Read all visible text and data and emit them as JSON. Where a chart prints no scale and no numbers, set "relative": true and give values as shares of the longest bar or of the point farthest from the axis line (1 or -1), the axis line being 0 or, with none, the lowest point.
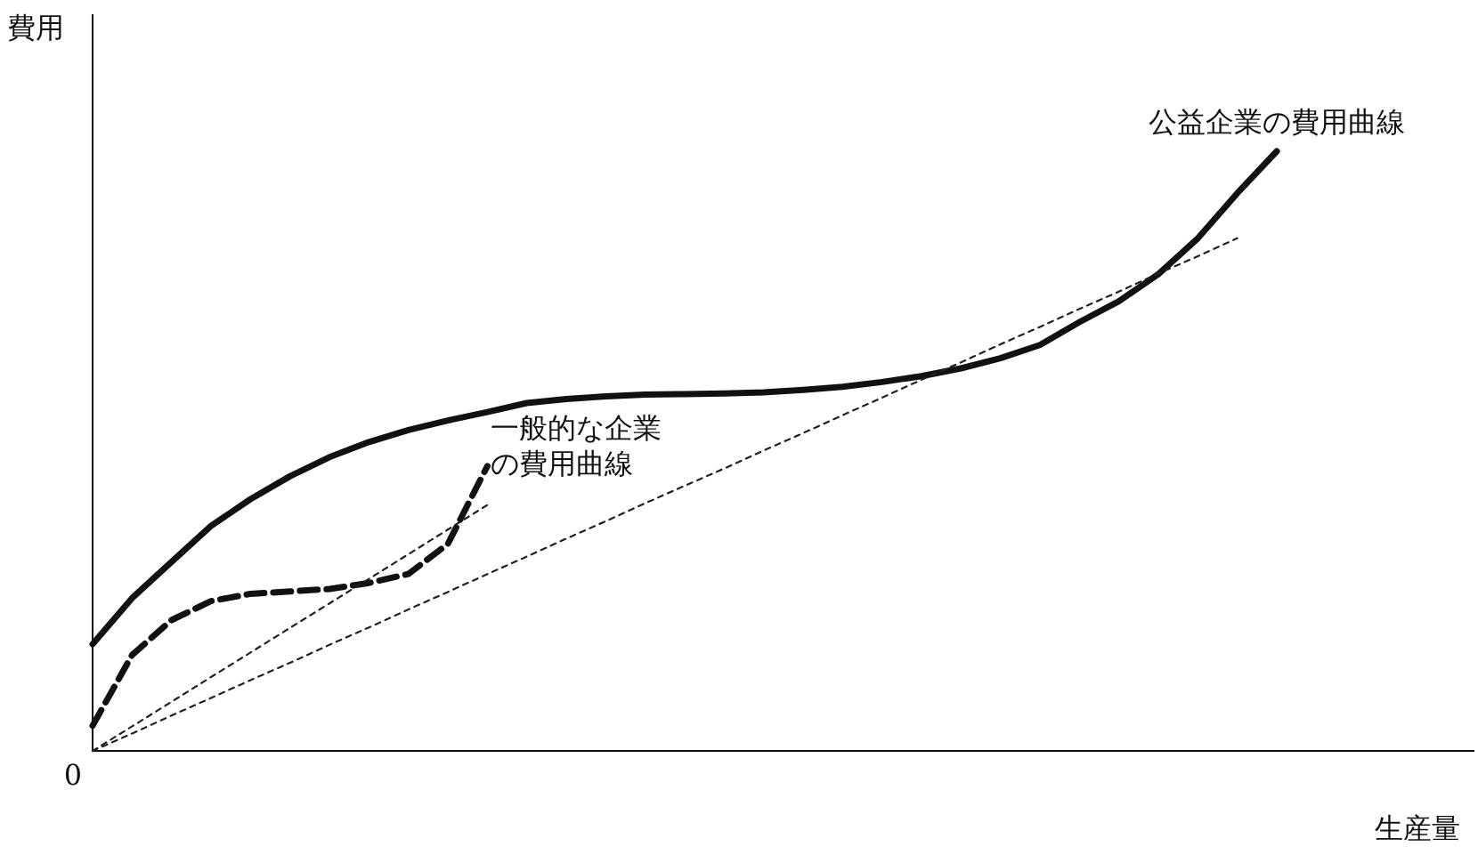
{
  "chart_data": {
    "type": "line",
    "relative": true,
    "xlabel": "生産量",
    "ylabel": "費用",
    "annotations": [
      "0"
    ],
    "categories": [
      null,
      null,
      null,
      null,
      null,
      null,
      null,
      null,
      null,
      null,
      null,
      null,
      null,
      null,
      null,
      null,
      null,
      null,
      null,
      null,
      null,
      null,
      null,
      null,
      null,
      null,
      null,
      null,
      null,
      null,
      null
    ],
    "series": [
      {
        "name": "公益企業の費用曲線",
        "color": "#111111",
        "line_style": "solid",
        "values": [
          0.178,
          0.255,
          0.315,
          0.375,
          0.42,
          0.458,
          0.49,
          0.515,
          0.535,
          0.551,
          0.565,
          0.58,
          0.587,
          0.591,
          0.594,
          0.595,
          0.596,
          0.598,
          0.602,
          0.607,
          0.615,
          0.625,
          0.638,
          0.655,
          0.677,
          0.715,
          0.75,
          0.795,
          0.855,
          0.93,
          1
        ]
      },
      {
        "name": "一般的な企業の費用曲線",
        "color": "#111111",
        "line_style": "dashed",
        "values": [
          0.042,
          0.16,
          0.218,
          0.25,
          0.262,
          0.266,
          0.27,
          0.28,
          0.295,
          0.345,
          0.475,
          null,
          null,
          null,
          null,
          null,
          null,
          null,
          null,
          null,
          null,
          null,
          null,
          null,
          null,
          null,
          null,
          null,
          null,
          null,
          null
        ]
      },
      {
        "color": "#222222",
        "line_style": "dotted",
        "values": [
          0,
          0.041,
          0.082,
          0.123,
          0.164,
          0.205,
          0.246,
          0.287,
          0.328,
          0.369,
          0.41,
          null,
          null,
          null,
          null,
          null,
          null,
          null,
          null,
          null,
          null,
          null,
          null,
          null,
          null,
          null,
          null,
          null,
          null,
          null,
          null
        ]
      },
      {
        "color": "#222222",
        "line_style": "dotted",
        "values": [
          0,
          0.029,
          0.059,
          0.088,
          0.118,
          0.147,
          0.177,
          0.206,
          0.236,
          0.265,
          0.295,
          0.324,
          0.354,
          0.383,
          0.413,
          0.442,
          0.471,
          0.501,
          0.53,
          0.56,
          0.589,
          0.619,
          0.648,
          0.678,
          0.707,
          0.737,
          0.766,
          0.796,
          0.825,
          0.855,
          null
        ]
      }
    ]
  }
}
